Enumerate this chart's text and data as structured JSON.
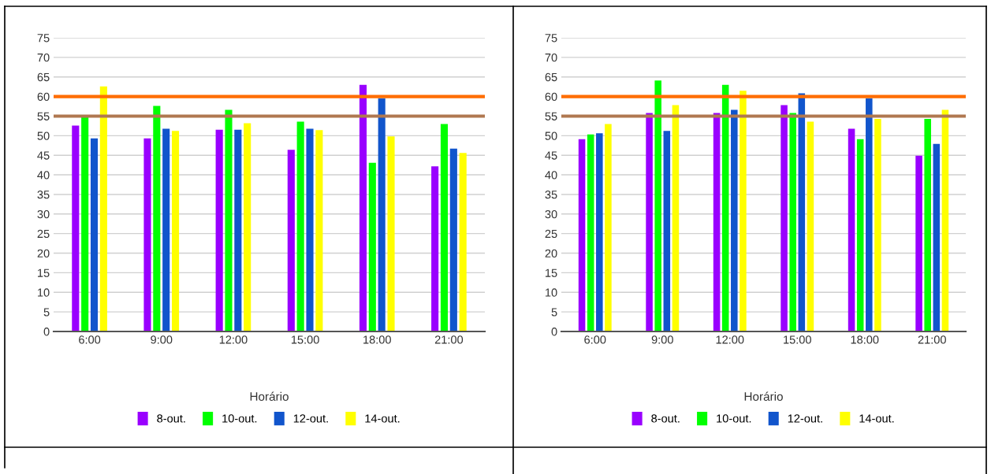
{
  "chart_data": [
    {
      "type": "bar",
      "xlabel": "Horário",
      "categories": [
        "6:00",
        "9:00",
        "12:00",
        "15:00",
        "18:00",
        "21:00"
      ],
      "series": [
        {
          "name": "8-out.",
          "color": "#9900ff",
          "values": [
            52.6,
            49.3,
            51.5,
            46.4,
            63,
            42.2
          ]
        },
        {
          "name": "10-out.",
          "color": "#00ff00",
          "values": [
            55,
            57.6,
            56.6,
            53.6,
            43.1,
            53
          ]
        },
        {
          "name": "12-out.",
          "color": "#1155cc",
          "values": [
            49.3,
            51.8,
            51.5,
            51.8,
            59.5,
            46.7
          ]
        },
        {
          "name": "14-out.",
          "color": "#ffff00",
          "values": [
            62.6,
            51.2,
            53.2,
            51.4,
            49.8,
            45.6
          ]
        }
      ],
      "ylim": [
        0,
        75
      ],
      "yticks": [
        0,
        5,
        10,
        15,
        20,
        25,
        30,
        35,
        40,
        45,
        50,
        55,
        60,
        65,
        70,
        75
      ],
      "grid": "y",
      "legend": "bottom",
      "ref_lines": [
        {
          "axis": "y",
          "value": 60,
          "color": "#ff6d01"
        },
        {
          "axis": "y",
          "value": 55,
          "color": "#b07850"
        }
      ]
    },
    {
      "type": "bar",
      "xlabel": "Horário",
      "categories": [
        "6:00",
        "9:00",
        "12:00",
        "15:00",
        "18:00",
        "21:00"
      ],
      "series": [
        {
          "name": "8-out.",
          "color": "#9900ff",
          "values": [
            49.1,
            55.8,
            55.8,
            57.8,
            51.8,
            44.9
          ]
        },
        {
          "name": "10-out.",
          "color": "#00ff00",
          "values": [
            50.3,
            64.1,
            63,
            55.8,
            49.1,
            54.3
          ]
        },
        {
          "name": "12-out.",
          "color": "#1155cc",
          "values": [
            50.6,
            51.2,
            56.6,
            60.8,
            59.5,
            47.9
          ]
        },
        {
          "name": "14-out.",
          "color": "#ffff00",
          "values": [
            53,
            57.8,
            61.5,
            53.6,
            54.3,
            56.6
          ]
        }
      ],
      "ylim": [
        0,
        75
      ],
      "yticks": [
        0,
        5,
        10,
        15,
        20,
        25,
        30,
        35,
        40,
        45,
        50,
        55,
        60,
        65,
        70,
        75
      ],
      "grid": "y",
      "legend": "bottom",
      "ref_lines": [
        {
          "axis": "y",
          "value": 60,
          "color": "#ff6d01"
        },
        {
          "axis": "y",
          "value": 55,
          "color": "#b07850"
        }
      ]
    }
  ]
}
